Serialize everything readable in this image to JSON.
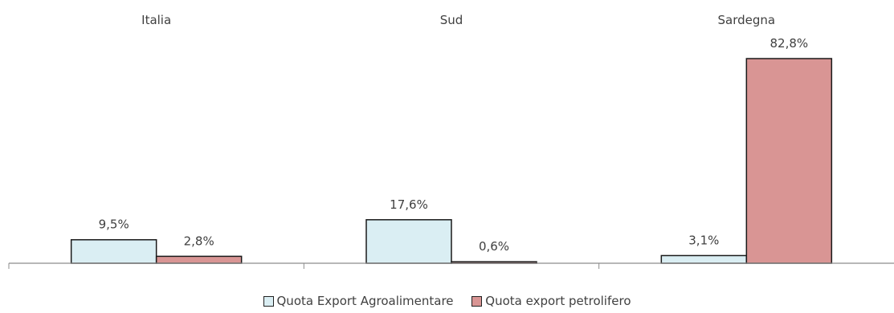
{
  "chart_data": {
    "type": "bar",
    "categories": [
      "Italia",
      "Sud",
      "Sardegna"
    ],
    "series": [
      {
        "name": "Quota Export Agroalimentare",
        "values": [
          9.5,
          17.6,
          3.1
        ],
        "labels": [
          "9,5%",
          "17,6%",
          "3,1%"
        ],
        "color": "#DAEEF3"
      },
      {
        "name": "Quota export petrolifero",
        "values": [
          2.8,
          0.6,
          82.8
        ],
        "labels": [
          "2,8%",
          "0,6%",
          "82,8%"
        ],
        "color": "#D99594"
      }
    ],
    "ylim": [
      0,
      82.8
    ],
    "grid": false,
    "legend_position": "bottom",
    "category_label_position": "top",
    "edge_color": "#1a1a1a",
    "axis_color": "#8c8c8c"
  }
}
